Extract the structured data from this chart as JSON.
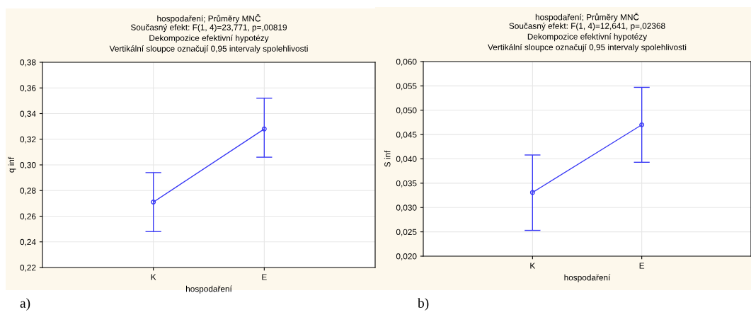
{
  "chart_data": [
    {
      "type": "line",
      "title": "hospodaření; Průměry MNČ",
      "subtitle": "Současný efekt: F(1, 4)=23,771, p=,00819\nDekompozice efektivní hypotézy\nVertikální sloupce označují 0,95 intervaly spolehlivosti",
      "xlabel": "hospodaření",
      "ylabel": "q inf",
      "categories": [
        "K",
        "E"
      ],
      "series": [
        {
          "color": "#3a3af5",
          "values": [
            0.271,
            0.328
          ],
          "errors": [
            [
              0.248,
              0.294
            ],
            [
              0.306,
              0.352
            ]
          ]
        }
      ],
      "ylim": [
        0.22,
        0.38
      ],
      "yticks": [
        {
          "value": 0.22,
          "label": "0,22"
        },
        {
          "value": 0.24,
          "label": "0,24"
        },
        {
          "value": 0.26,
          "label": "0,26"
        },
        {
          "value": 0.28,
          "label": "0,28"
        },
        {
          "value": 0.3,
          "label": "0,30"
        },
        {
          "value": 0.32,
          "label": "0,32"
        },
        {
          "value": 0.34,
          "label": "0,34"
        },
        {
          "value": 0.36,
          "label": "0,36"
        },
        {
          "value": 0.38,
          "label": "0,38"
        }
      ],
      "grid": true,
      "marker": "circle",
      "line_style": "solid",
      "annotations": [
        "a)"
      ]
    },
    {
      "type": "line",
      "title": "hospodaření; Průměry MNČ",
      "subtitle": "Současný efekt: F(1, 4)=12,641, p=,02368\nDekompozice efektivní hypotézy\nVertikální sloupce označují 0,95 intervaly spolehlivosti",
      "xlabel": "hospodaření",
      "ylabel": "S inf",
      "categories": [
        "K",
        "E"
      ],
      "series": [
        {
          "color": "#3a3af5",
          "values": [
            0.0331,
            0.047
          ],
          "errors": [
            [
              0.0253,
              0.0408
            ],
            [
              0.0393,
              0.0547
            ]
          ]
        }
      ],
      "ylim": [
        0.02,
        0.06
      ],
      "yticks": [
        {
          "value": 0.02,
          "label": "0,020"
        },
        {
          "value": 0.025,
          "label": "0,025"
        },
        {
          "value": 0.03,
          "label": "0,030"
        },
        {
          "value": 0.035,
          "label": "0,035"
        },
        {
          "value": 0.04,
          "label": "0,040"
        },
        {
          "value": 0.045,
          "label": "0,045"
        },
        {
          "value": 0.05,
          "label": "0,050"
        },
        {
          "value": 0.055,
          "label": "0,055"
        },
        {
          "value": 0.06,
          "label": "0,060"
        }
      ],
      "grid": true,
      "marker": "circle",
      "line_style": "solid",
      "annotations": [
        "b)"
      ]
    }
  ]
}
